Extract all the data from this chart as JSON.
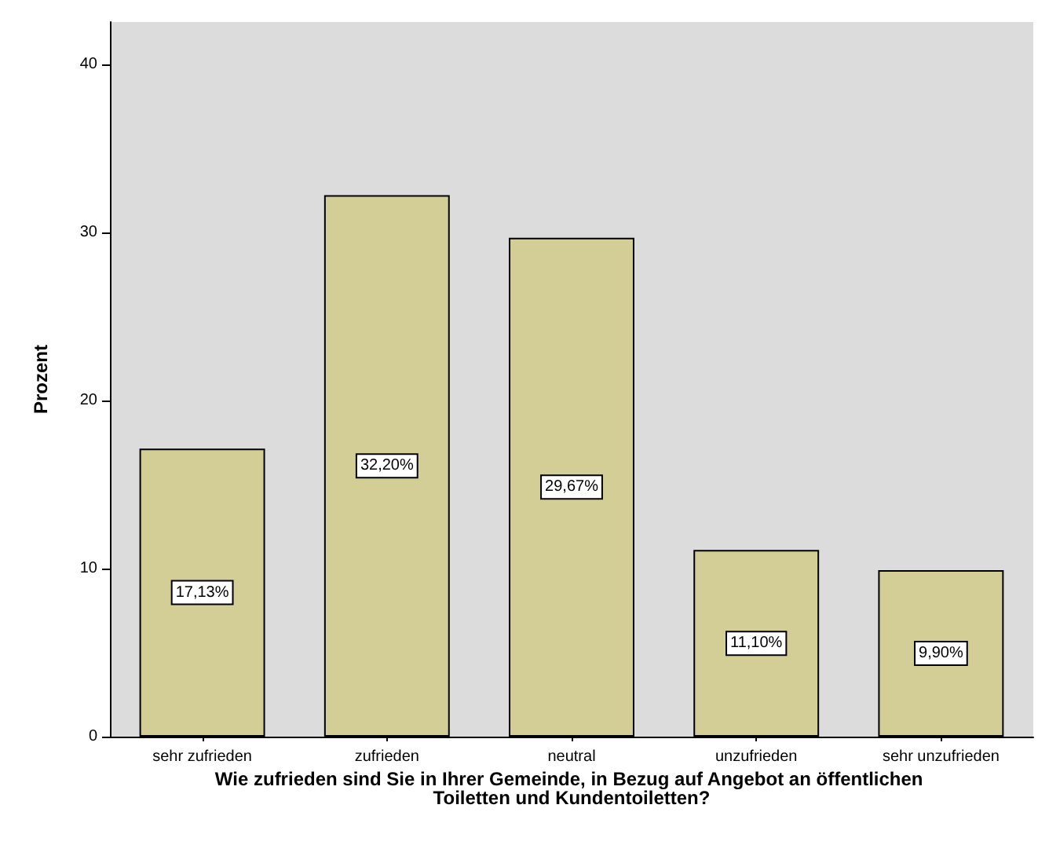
{
  "chart_data": {
    "type": "bar",
    "xlabel": "Wie zufrieden sind Sie in Ihrer Gemeinde, in Bezug auf Angebot an öffentlichen Toiletten und Kundentoiletten?",
    "ylabel": "Prozent",
    "categories": [
      "sehr zufrieden",
      "zufrieden",
      "neutral",
      "unzufrieden",
      "sehr unzufrieden"
    ],
    "values": [
      17.13,
      32.2,
      29.67,
      11.1,
      9.9
    ],
    "value_labels": [
      "17,13%",
      "32,20%",
      "29,67%",
      "11,10%",
      "9,90%"
    ],
    "color": "#d3ce96",
    "ylim": [
      0,
      42.5
    ],
    "yticks": [
      0,
      10,
      20,
      30,
      40
    ]
  }
}
